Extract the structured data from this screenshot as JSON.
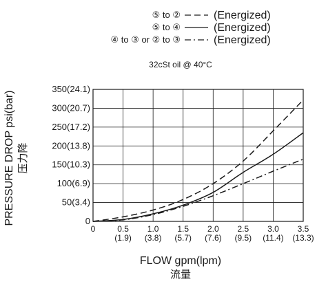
{
  "chart_data": {
    "type": "line",
    "condition": "32cSt  oil @ 40°C",
    "xlabel": "FLOW gpm(lpm)",
    "xlabel_cn": "流量",
    "ylabel": "PRESSURE DROP psi(bar)",
    "ylabel_cn": "压力降",
    "xlim": [
      0,
      3.5
    ],
    "ylim": [
      0,
      350
    ],
    "grid": true,
    "legend_position": "top-center",
    "x_ticks": [
      {
        "value": 0,
        "main": "0",
        "sub": ""
      },
      {
        "value": 0.5,
        "main": "0.5",
        "sub": "(1.9)"
      },
      {
        "value": 1.0,
        "main": "1.0",
        "sub": "(3.8)"
      },
      {
        "value": 1.5,
        "main": "1.5",
        "sub": "(5.7)"
      },
      {
        "value": 2.0,
        "main": "2.0",
        "sub": "(7.6)"
      },
      {
        "value": 2.5,
        "main": "2.5",
        "sub": "(9.5)"
      },
      {
        "value": 3.0,
        "main": "3.0",
        "sub": "(11.4)"
      },
      {
        "value": 3.5,
        "main": "3.5",
        "sub": "(13.3)"
      }
    ],
    "y_ticks": [
      {
        "value": 0,
        "label": "0"
      },
      {
        "value": 50,
        "label": "50(3.4)"
      },
      {
        "value": 100,
        "label": "100(6.9)"
      },
      {
        "value": 150,
        "label": "150(10.3)"
      },
      {
        "value": 200,
        "label": "200(13.8)"
      },
      {
        "value": 250,
        "label": "250(17.2)"
      },
      {
        "value": 300,
        "label": "300(20.7)"
      },
      {
        "value": 350,
        "label": "350(24.1)"
      }
    ],
    "series": [
      {
        "name": "⑤ to ②",
        "state": "(Energized)",
        "line_style": "dashed",
        "x": [
          0,
          0.5,
          1.0,
          1.5,
          2.0,
          2.5,
          3.0,
          3.5
        ],
        "y": [
          0,
          12,
          30,
          58,
          100,
          160,
          240,
          322
        ]
      },
      {
        "name": "⑤ to ④",
        "state": "(Energized)",
        "line_style": "solid",
        "x": [
          0,
          0.5,
          1.0,
          1.5,
          2.0,
          2.5,
          3.0,
          3.5
        ],
        "y": [
          0,
          5,
          20,
          43,
          77,
          130,
          178,
          235
        ]
      },
      {
        "name": "④ to ③  or ② to ③",
        "state": "(Energized)",
        "line_style": "dashdot",
        "x": [
          0,
          0.5,
          1.0,
          1.5,
          2.0,
          2.5,
          3.0,
          3.5
        ],
        "y": [
          0,
          4,
          18,
          40,
          68,
          100,
          133,
          165
        ]
      }
    ]
  }
}
